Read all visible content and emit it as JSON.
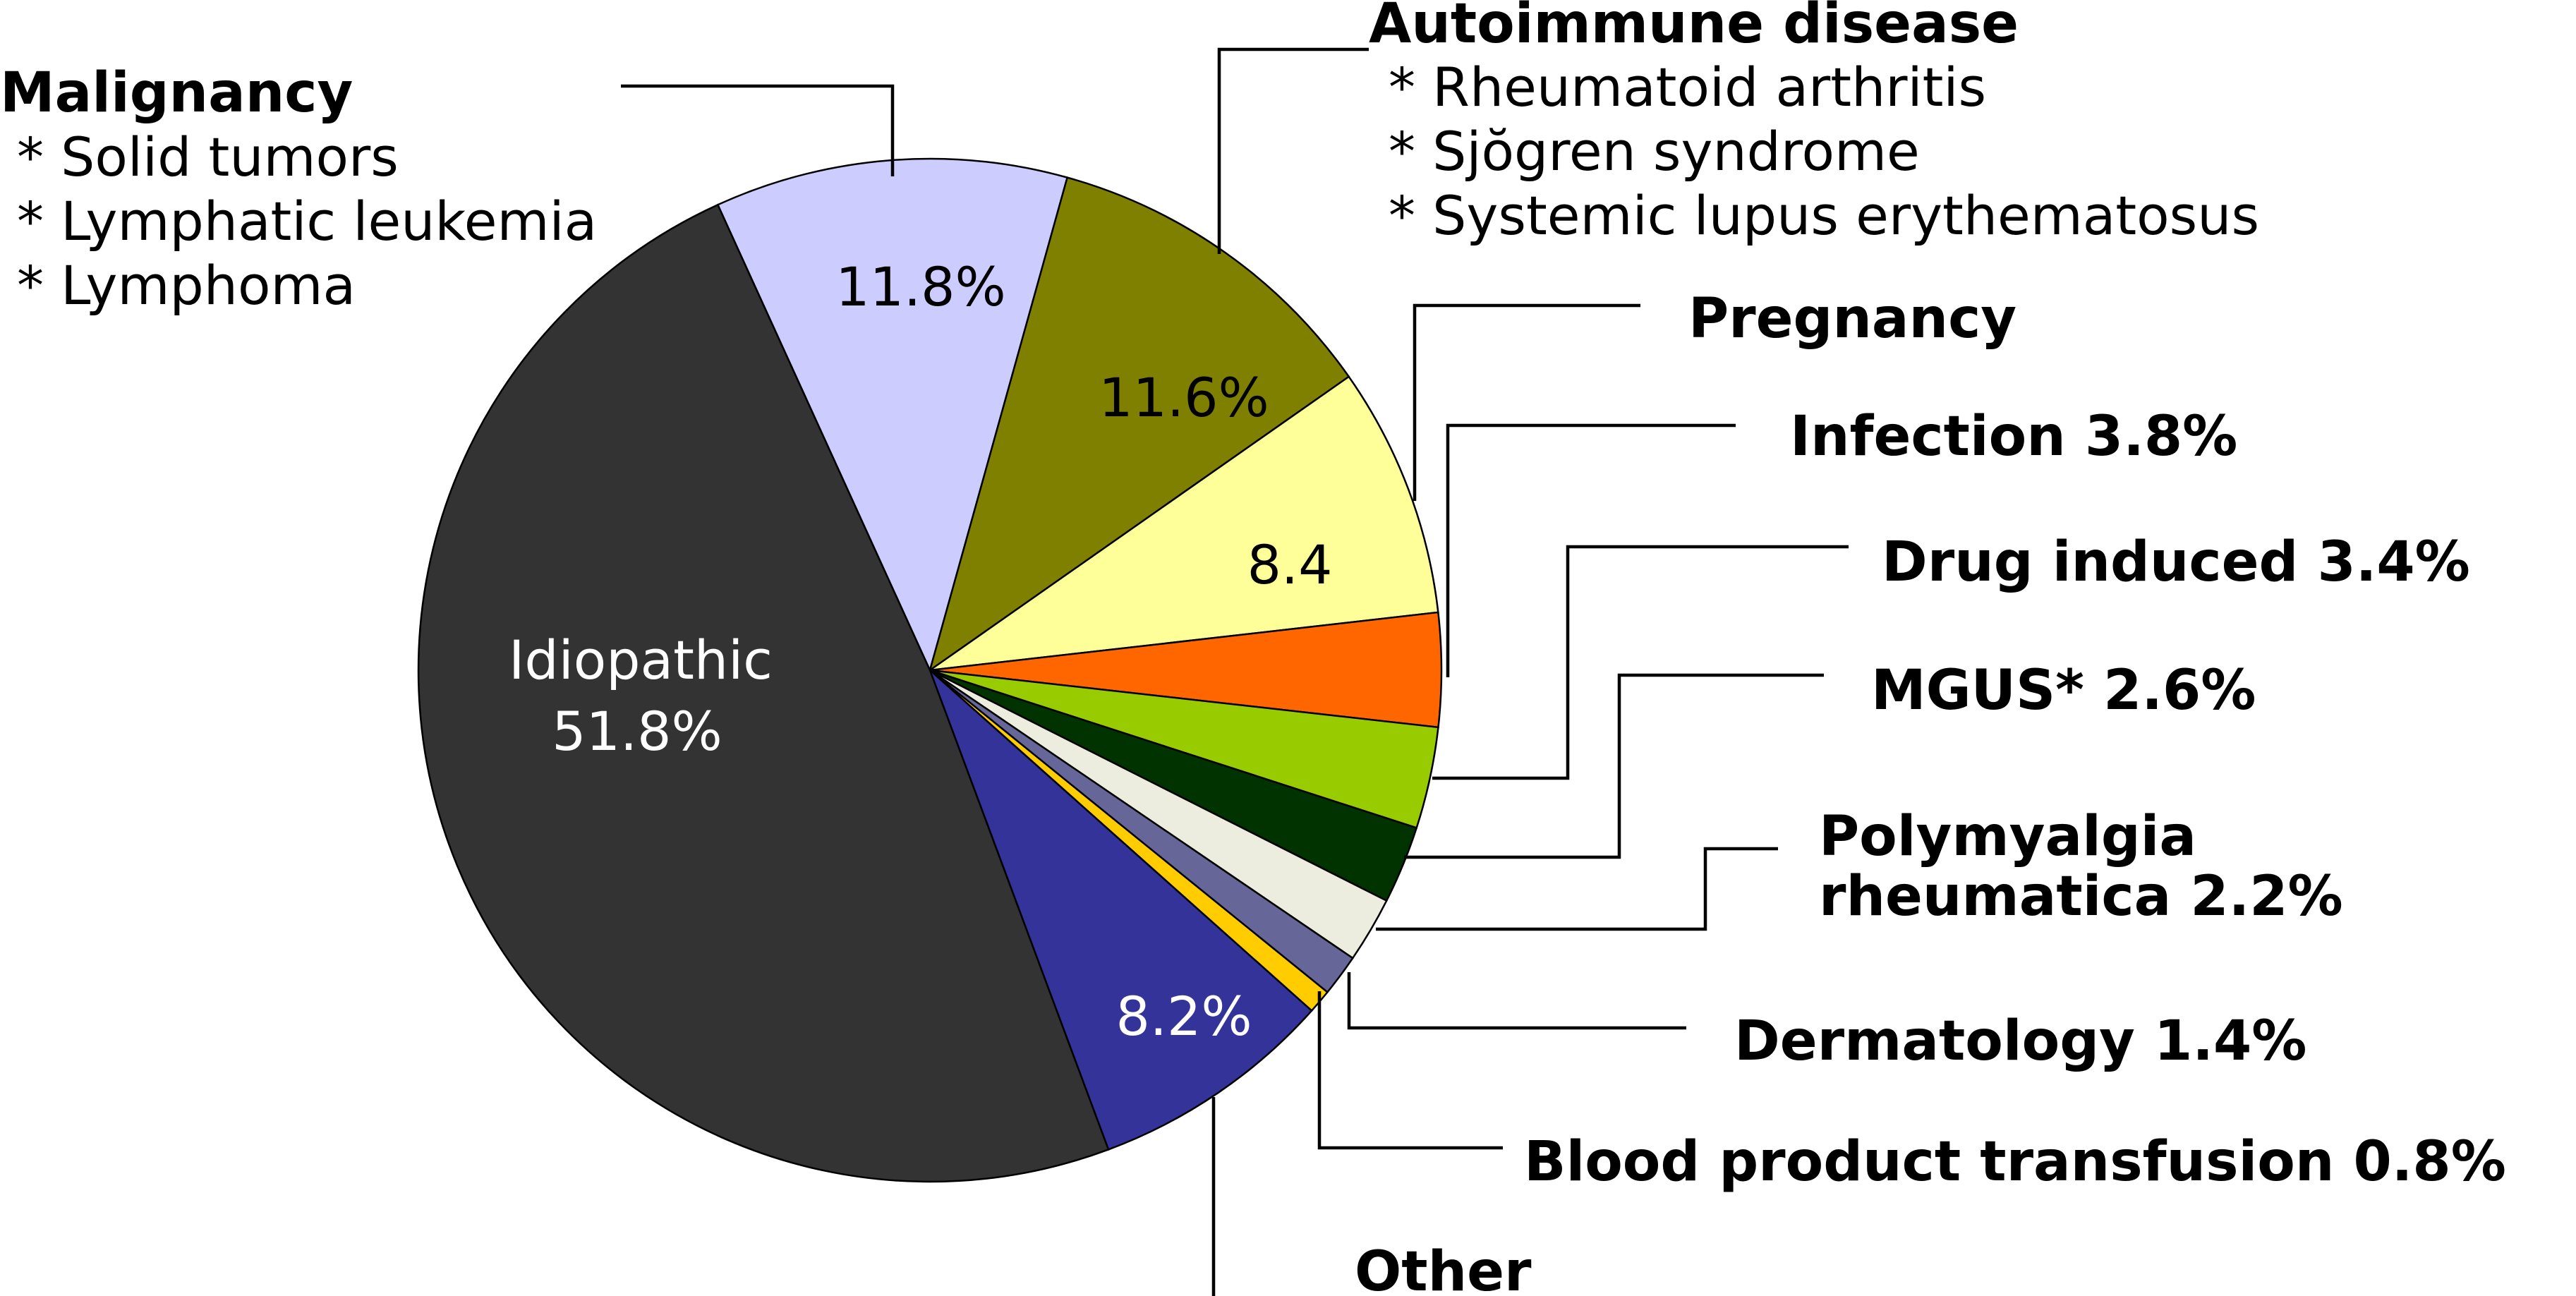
{
  "chart_data": {
    "type": "pie",
    "title": "",
    "start_angle_deg": -24.5,
    "direction": "clockwise",
    "slices": [
      {
        "name": "Malignancy",
        "value": 11.8,
        "color": "#ccccff",
        "value_label": "11.8%",
        "details": [
          "* Solid tumors",
          "* Lymphatic leukemia",
          "* Lymphoma"
        ]
      },
      {
        "name": "Autoimmune disease",
        "value": 11.6,
        "color": "#808000",
        "value_label": "11.6%",
        "details": [
          "* Rheumatoid arthritis",
          "* Sjŏgren syndrome",
          "* Systemic lupus erythematosus"
        ]
      },
      {
        "name": "Pregnancy",
        "value": 8.4,
        "color": "#ffff99",
        "value_label": "8.4"
      },
      {
        "name": "Infection",
        "value": 3.8,
        "color": "#ff6600",
        "label": "Infection 3.8%"
      },
      {
        "name": "Drug induced",
        "value": 3.4,
        "color": "#99cc00",
        "label": "Drug induced 3.4%"
      },
      {
        "name": "MGUS*",
        "value": 2.6,
        "color": "#003300",
        "label": "MGUS* 2.6%"
      },
      {
        "name": "Polymyalgia rheumatica",
        "value": 2.2,
        "color": "#ececdf",
        "label": [
          "Polymyalgia",
          "rheumatica 2.2%"
        ]
      },
      {
        "name": "Dermatology",
        "value": 1.4,
        "color": "#666699",
        "label": "Dermatology 1.4%"
      },
      {
        "name": "Blood product transfusion",
        "value": 0.8,
        "color": "#ffcc00",
        "label": "Blood product transfusion 0.8%"
      },
      {
        "name": "Other",
        "value": 8.2,
        "color": "#333399",
        "value_label": "8.2%",
        "label": "Other"
      },
      {
        "name": "Idiopathic",
        "value": 51.8,
        "color": "#333333",
        "value_label": [
          "Idiopathic",
          "51.8%"
        ]
      }
    ]
  }
}
